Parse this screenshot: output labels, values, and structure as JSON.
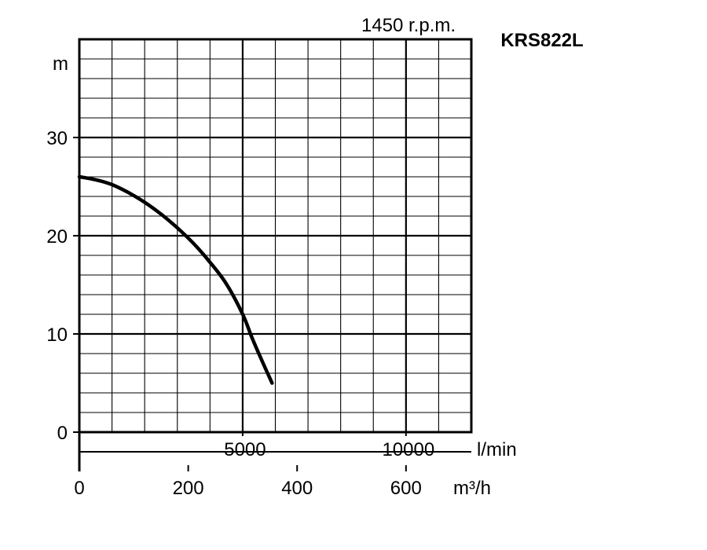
{
  "chart_data": {
    "type": "line",
    "model": "KRS822L",
    "speed": "1450 r.p.m.",
    "ylabel": "m",
    "x_primary_unit": "l/min",
    "x_secondary_unit": "m³/h",
    "xlim": [
      0,
      12000
    ],
    "ylim": [
      0,
      40
    ],
    "y_ticks": [
      {
        "value": 0,
        "label": "0"
      },
      {
        "value": 10,
        "label": "10"
      },
      {
        "value": 20,
        "label": "20"
      },
      {
        "value": 30,
        "label": "30"
      }
    ],
    "x_primary_ticks": [
      {
        "value": 5000,
        "label": "5000"
      },
      {
        "value": 10000,
        "label": "10000"
      }
    ],
    "x_secondary_ticks": [
      {
        "value": 0,
        "label": "0"
      },
      {
        "value": 200,
        "label": "200"
      },
      {
        "value": 400,
        "label": "400"
      },
      {
        "value": 600,
        "label": "600"
      }
    ],
    "grid": {
      "x_step": 1000,
      "y_step": 2,
      "major_x_step": 5000,
      "major_y_step": 10
    },
    "series": [
      {
        "x": [
          0,
          500,
          1000,
          1500,
          2000,
          2500,
          3000,
          3500,
          4000,
          4500,
          5000,
          5300,
          5600,
          5900
        ],
        "y": [
          26.0,
          25.7,
          25.2,
          24.4,
          23.4,
          22.2,
          20.8,
          19.2,
          17.3,
          15.1,
          12.0,
          9.5,
          7.2,
          5.0
        ]
      }
    ]
  }
}
